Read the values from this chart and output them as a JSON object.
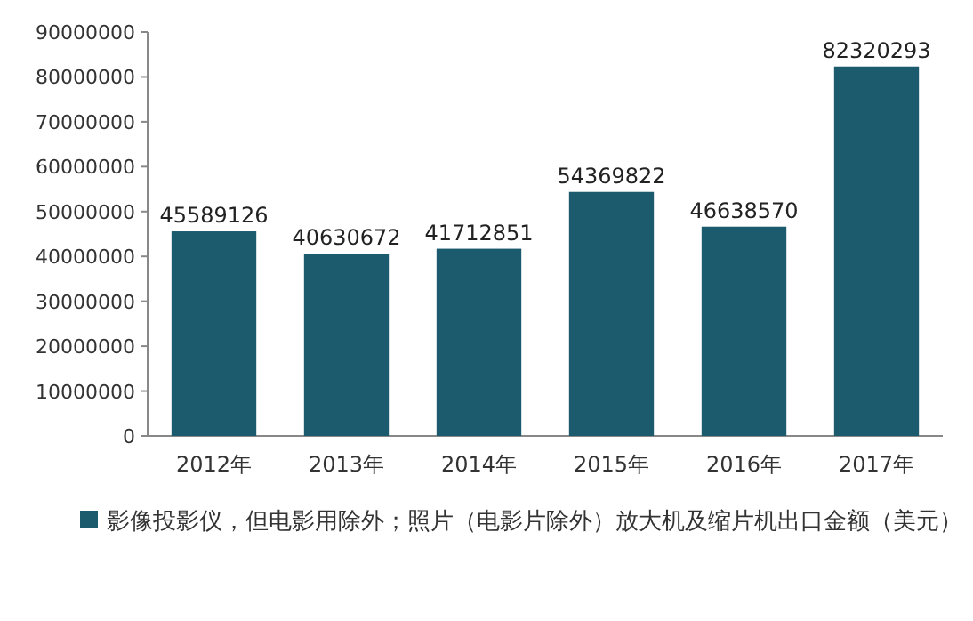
{
  "chart_data": {
    "type": "bar",
    "categories": [
      "2012年",
      "2013年",
      "2014年",
      "2015年",
      "2016年",
      "2017年"
    ],
    "series": [
      {
        "name": "影像投影仪，但电影用除外；照片（电影片除外）放大机及缩片机出口金额（美元）",
        "color": "#1c5a6e",
        "values": [
          45589126,
          40630672,
          41712851,
          54369822,
          46638570,
          82320293
        ]
      }
    ],
    "ylim": [
      0,
      90000000
    ],
    "yticks": [
      0,
      10000000,
      20000000,
      30000000,
      40000000,
      50000000,
      60000000,
      70000000,
      80000000,
      90000000
    ],
    "data_labels": true,
    "grid": false,
    "legend": "bottom"
  }
}
